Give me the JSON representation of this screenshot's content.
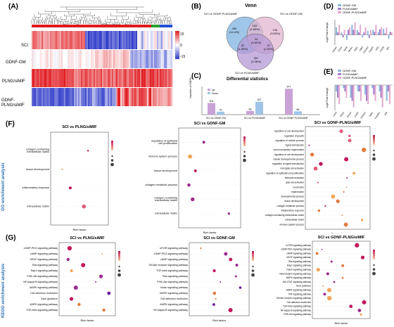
{
  "panels": {
    "a": "(A)",
    "b": "(B)",
    "c": "(C)",
    "d": "(D)",
    "e": "(E)",
    "f": "(F)",
    "g": "(G)"
  },
  "heatmap": {
    "rows": [
      "SCI",
      "GDNF-GM",
      "PLNG/siMIF",
      "GDNF-PLNG/siMIF"
    ],
    "scale": [
      "15",
      "0",
      "-15"
    ],
    "colors": {
      "high": "#e0191e",
      "mid": "#ffffff",
      "low": "#2a37c8"
    }
  },
  "venn": {
    "title": "Venn",
    "sets": [
      "SCI vs GDNF-PLNG/siMIF",
      "SCI vs GDNF-GM",
      "SCI vs PLNG/siMIF"
    ],
    "counts": [
      "490\n(14.4%)",
      "109\n(2.83%)",
      "136\n(3.53%)",
      "24\n(0.62%)",
      "52\n(1.35%)",
      "97\n(2.52%)",
      "357\n(9.28%)"
    ],
    "colors": {
      "a": "#7db3e0",
      "b": "#e3b5cf",
      "c": "#b59ad6"
    }
  },
  "diff": {
    "title": "Differential statistics",
    "ylabel": "Number of DEPs",
    "legend": [
      "Up",
      "Down"
    ],
    "colors": {
      "up": "#c9a3d6",
      "down": "#9fc4e8"
    }
  },
  "chart_data": [
    {
      "type": "bar",
      "title": "Differential statistics",
      "ylabel": "Number of DEPs",
      "categories": [
        "SCI vs GDNF-GM",
        "SCI vs PLNG/siMIF",
        "SCI vs GDNF-PLNG/siMIF"
      ],
      "series": [
        {
          "name": "Up",
          "values": [
            304,
            96,
            677
          ]
        },
        {
          "name": "Down",
          "values": [
            76,
            337,
            86
          ]
        }
      ]
    },
    {
      "type": "bar",
      "ylabel": "Log2 Fold Change",
      "categories": [
        "Apoa4",
        "Oxsm",
        "Apob",
        "Apoa1",
        "Spp1",
        "Cdh2",
        "Cacna2",
        "Gap43",
        "Ncl2",
        "Col18",
        "Igf1"
      ],
      "series": [
        {
          "name": "GDNF-GM",
          "values": [
            1.5,
            0.5,
            -1.0,
            2.0,
            1.0,
            -0.5,
            0.8,
            1.0,
            0.5,
            1.2,
            -0.8
          ]
        },
        {
          "name": "PLNG/siMIF",
          "values": [
            0.5,
            -0.5,
            1.0,
            1.0,
            0.5,
            0.5,
            -0.6,
            0.6,
            1.1,
            0.3,
            0.6
          ]
        },
        {
          "name": "GDNF-PLNG/siMIF",
          "values": [
            2.0,
            1.0,
            1.5,
            2.5,
            2.0,
            1.5,
            1.0,
            2.0,
            1.5,
            1.5,
            0.5
          ]
        }
      ]
    },
    {
      "type": "bar",
      "ylabel": "Log2 Fold Change",
      "categories": [
        "Lrfn3",
        "Ntsy2",
        "Anxa2",
        "Csrp2",
        "Mmp12",
        "Spp1",
        "Cacdiv1",
        "Nell"
      ],
      "series": [
        {
          "name": "GDNF-GM",
          "values": [
            -1.0,
            -0.5,
            -2.0,
            -1.0,
            -1.5,
            -0.5,
            -1.0,
            -2.5
          ]
        },
        {
          "name": "PLNG/siMIF",
          "values": [
            -2.0,
            -1.0,
            -2.5,
            -1.0,
            -2.5,
            -1.5,
            -2.0,
            -1.0
          ]
        },
        {
          "name": "GDNF-PLNG/siMIF",
          "values": [
            -3.0,
            -2.0,
            -3.5,
            -2.5,
            -3.0,
            -2.5,
            -3.5,
            -3.0
          ]
        }
      ]
    }
  ],
  "go": {
    "side_label": "GO enrichment analysis",
    "plots": [
      {
        "title": "SCI vs PLNG/siMIF",
        "xlabel": "Rich factor",
        "terms": [
          "collagen-containing\nextracellular matrix",
          "tissue development",
          "inflammatory response",
          "extracellular matrix"
        ]
      },
      {
        "title": "SCI vs GDNF-GM",
        "xlabel": "Rich factor",
        "terms": [
          "regulation of epithelial\ncell proliferation",
          "immune system process",
          "tissue development",
          "collagen metabolic process",
          "collagen-containing\nextracellular matrix",
          "extracellular matrix"
        ]
      },
      {
        "title": "SCI vs GDNF-PLNG/siMIF",
        "xlabel": "Rich factor",
        "terms": [
          "regulation of cell development",
          "regulation of growth",
          "regulation of cellular process",
          "signal transduction",
          "neuron projection regeneration",
          "regulation of cell development",
          "cellular developmental process",
          "regulation of signal transduction",
          "microglial cell activation",
          "regulation of epithelial cell proliferation",
          "astrocyte activation",
          "glial cell activation",
          "locomotion",
          "regeneration",
          "developmental process",
          "tissue development",
          "collagen metabolic process",
          "inflammatory response",
          "collagen-containing extracellular matrix",
          "extracellular matrix",
          "immune system process"
        ]
      }
    ],
    "legend_title_p": "Pvalue",
    "legend_title_n": "Number"
  },
  "kegg": {
    "side_label": "KEGG enrichment analysis",
    "plots": [
      {
        "title": "SCI vs PLNG/siMIF",
        "xlabel": "Rich factor",
        "terms": [
          "cGMP-PKG signaling pathway",
          "cAMP signaling pathway",
          "VEGF signaling pathway",
          "Ras signaling pathway",
          "Rap1 signaling pathway",
          "PI3K-Akt signaling pathway",
          "NF-kappa B signaling pathway",
          "MAPK signaling pathway",
          "Cell adhesion molecules",
          "Axon guidance",
          "AMPK signaling pathway",
          "TGF-beta signaling pathway"
        ]
      },
      {
        "title": "SCI vs GDNF-GM",
        "xlabel": "Rich factor",
        "terms": [
          "mTOR signaling pathway",
          "cGMP-PKG signaling pathway",
          "cAMP signaling pathway",
          "Toll-like receptor signaling pathway",
          "TGF-beta signaling pathway",
          "Ras signaling pathway",
          "PI3K-Akt signaling pathway",
          "Notch signaling pathway",
          "MAPK signaling pathway",
          "Cell adhesion molecules",
          "AMPK signaling pathway",
          "NF-kappa B signaling pathway"
        ]
      },
      {
        "title": "SCI vs GDNF-PLNG/siMIF",
        "xlabel": "Rich factor",
        "terms": [
          "mTOR signaling pathway",
          "cGMP-PKG signaling pathway",
          "cAMP signaling pathway",
          "VEGF signaling pathway",
          "Ras signaling pathway",
          "Rap1 signaling pathway",
          "Notch signaling pathway",
          "Neurotrophin signaling pathway",
          "MAPK signaling pathway",
          "JAK-STAT signaling pathway",
          "Axon guidance",
          "AMPK signaling pathway",
          "TNF signaling pathway",
          "Toll-like receptor signaling pathway",
          "Cell adhesion molecules",
          "TGF-beta signaling pathway",
          "NF-kappa B signaling pathway",
          "PI3K-Akt signaling pathway"
        ]
      }
    ]
  }
}
